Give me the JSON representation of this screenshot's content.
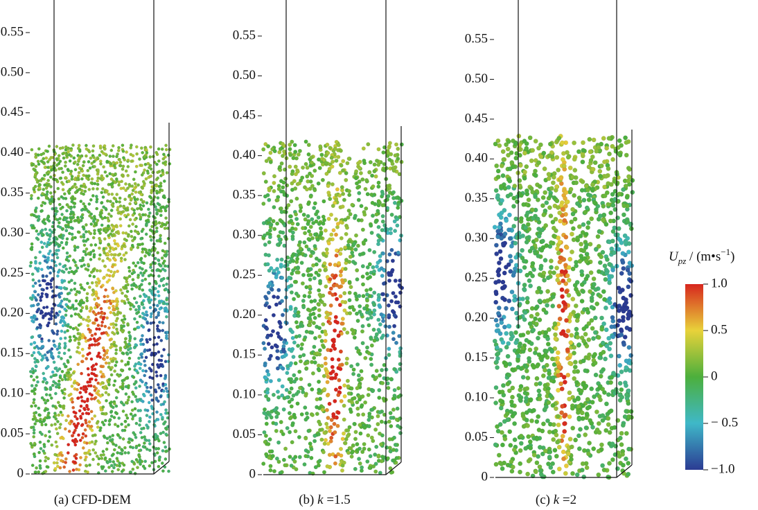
{
  "panels": [
    {
      "yticks": [
        "0",
        "0.05",
        "0.10",
        "0.15",
        "0.20",
        "0.25",
        "0.30",
        "0.35",
        "0.40",
        "0.45",
        "0.50",
        "0.55"
      ],
      "caption": {
        "prefix": "(a) CFD-DEM"
      }
    },
    {
      "yticks": [
        "0",
        "0.05",
        "0.10",
        "0.15",
        "0.20",
        "0.25",
        "0.30",
        "0.35",
        "0.40",
        "0.45",
        "0.50",
        "0.55"
      ],
      "caption": {
        "prefix": "(b) ",
        "italic": "k",
        "suffix": " =1.5"
      }
    },
    {
      "yticks": [
        "0",
        "0.05",
        "0.10",
        "0.15",
        "0.20",
        "0.25",
        "0.30",
        "0.35",
        "0.40",
        "0.45",
        "0.50",
        "0.55"
      ],
      "caption": {
        "prefix": "(c) ",
        "italic": "k",
        "suffix": " =2"
      }
    }
  ],
  "colorbar": {
    "title": {
      "symbol": "U",
      "subscript": "pz",
      "unit": " / (m•s",
      "superscript": "−1",
      "close": ")"
    },
    "ticks": [
      "1.0",
      "0.5",
      "0",
      "− 0.5",
      "−1.0"
    ]
  }
}
